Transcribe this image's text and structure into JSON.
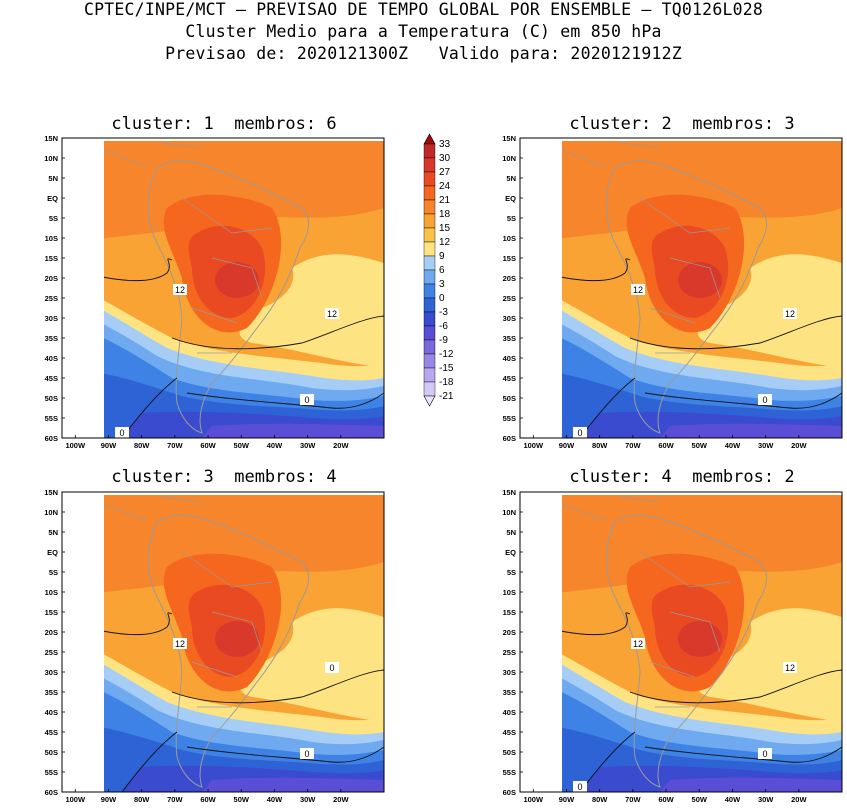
{
  "header": {
    "line1": "CPTEC/INPE/MCT – PREVISAO DE TEMPO GLOBAL POR ENSEMBLE – TQ0126L028",
    "line2": "Cluster Medio para a Temperatura (C) em 850 hPa",
    "line3": "Previsao de: 2020121300Z   Valido para: 2020121912Z"
  },
  "panels": [
    {
      "title": "cluster: 1  membros: 6",
      "contour_labels": [
        "12",
        "12",
        "0",
        "0"
      ]
    },
    {
      "title": "cluster: 2  membros: 3",
      "contour_labels": [
        "12",
        "12",
        "0",
        "0"
      ]
    },
    {
      "title": "cluster: 3  membros: 4",
      "contour_labels": [
        "12",
        "0",
        "0"
      ]
    },
    {
      "title": "cluster: 4  membros: 2",
      "contour_labels": [
        "12",
        "12",
        "0",
        "0"
      ]
    }
  ],
  "axes": {
    "lat_ticks": [
      "15N",
      "10N",
      "5N",
      "EQ",
      "5S",
      "10S",
      "15S",
      "20S",
      "25S",
      "30S",
      "35S",
      "40S",
      "45S",
      "50S",
      "55S",
      "60S"
    ],
    "lon_ticks": [
      "100W",
      "90W",
      "80W",
      "70W",
      "60W",
      "50W",
      "40W",
      "30W",
      "20W"
    ]
  },
  "colorbar": {
    "labels": [
      "33",
      "30",
      "27",
      "24",
      "21",
      "18",
      "15",
      "12",
      "9",
      "6",
      "3",
      "0",
      "-3",
      "-6",
      "-9",
      "-12",
      "-15",
      "-18",
      "-21"
    ],
    "colors": [
      "#9e0a0a",
      "#c0292a",
      "#d8392a",
      "#ea4a22",
      "#f5661f",
      "#f7852b",
      "#f9a334",
      "#fbc24a",
      "#fde382",
      "#a6cdf6",
      "#6fa9ef",
      "#3e82e6",
      "#2e63d6",
      "#3a4bd0",
      "#5b4ed6",
      "#7a68de",
      "#9a86e6",
      "#b8a6ee",
      "#d6c8f4",
      "#ece4fa"
    ]
  },
  "map_colors": {
    "t24": "#d8392a",
    "t21": "#ea4a22",
    "t18": "#f5661f",
    "t15": "#f7852b",
    "t12": "#f9a334",
    "t9": "#fde382",
    "t6": "#a6cdf6",
    "t3": "#6fa9ef",
    "t0": "#3e82e6",
    "tm3": "#2e63d6",
    "tm6": "#3a4bd0",
    "tm9": "#5b4ed6",
    "land_outline": "#9a9a9a"
  }
}
